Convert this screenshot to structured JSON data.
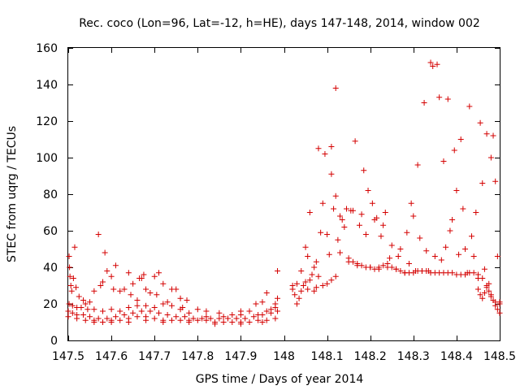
{
  "chart_data": {
    "type": "scatter",
    "title": "Rec. coco (Lon=96, Lat=-12, h=HE), days 147-148, 2014, window 002",
    "xlabel": "GPS time / Days of year 2014",
    "ylabel": "STEC from uqrg / TECUs",
    "xlim": [
      147.5,
      148.5
    ],
    "ylim": [
      0,
      160
    ],
    "xticks": [
      147.5,
      147.6,
      147.7,
      147.8,
      147.9,
      148.0,
      148.1,
      148.2,
      148.3,
      148.4,
      148.5
    ],
    "xtick_labels": [
      "147.5",
      "147.6",
      "147.7",
      "147.8",
      "147.9",
      "148",
      "148.1",
      "148.2",
      "148.3",
      "148.4",
      "148.5"
    ],
    "yticks": [
      0,
      20,
      40,
      60,
      80,
      100,
      120,
      140,
      160
    ],
    "ytick_labels": [
      "0",
      "20",
      "40",
      "60",
      "80",
      "100",
      "120",
      "140",
      "160"
    ],
    "grid": false,
    "legend": "none",
    "marker": "plus",
    "color": "#d40000",
    "series": [
      {
        "name": "STEC",
        "points": [
          [
            147.502,
            46
          ],
          [
            147.503,
            40
          ],
          [
            147.504,
            35
          ],
          [
            147.506,
            30
          ],
          [
            147.508,
            27
          ],
          [
            147.512,
            34
          ],
          [
            147.515,
            51
          ],
          [
            147.518,
            29
          ],
          [
            147.525,
            24
          ],
          [
            147.535,
            22
          ],
          [
            147.54,
            20
          ],
          [
            147.55,
            21
          ],
          [
            147.56,
            27
          ],
          [
            147.57,
            58
          ],
          [
            147.575,
            30
          ],
          [
            147.58,
            32
          ],
          [
            147.585,
            48
          ],
          [
            147.59,
            38
          ],
          [
            147.6,
            35
          ],
          [
            147.605,
            28
          ],
          [
            147.61,
            41
          ],
          [
            147.62,
            27
          ],
          [
            147.63,
            28
          ],
          [
            147.64,
            37
          ],
          [
            147.645,
            25
          ],
          [
            147.65,
            31
          ],
          [
            147.66,
            22
          ],
          [
            147.665,
            34
          ],
          [
            147.67,
            34
          ],
          [
            147.675,
            36
          ],
          [
            147.68,
            28
          ],
          [
            147.69,
            26
          ],
          [
            147.7,
            35
          ],
          [
            147.705,
            25
          ],
          [
            147.71,
            37
          ],
          [
            147.72,
            31
          ],
          [
            147.73,
            21
          ],
          [
            147.74,
            28
          ],
          [
            147.75,
            28
          ],
          [
            147.76,
            23
          ],
          [
            147.765,
            18
          ],
          [
            147.775,
            22
          ],
          [
            147.8,
            17
          ],
          [
            147.82,
            16
          ],
          [
            147.85,
            15
          ],
          [
            147.88,
            14
          ],
          [
            147.9,
            16
          ],
          [
            147.92,
            16
          ],
          [
            147.935,
            20
          ],
          [
            147.95,
            21
          ],
          [
            147.96,
            26
          ],
          [
            147.97,
            17
          ],
          [
            147.98,
            20
          ],
          [
            147.985,
            23
          ],
          [
            147.985,
            38
          ],
          [
            147.502,
            20
          ],
          [
            147.51,
            19
          ],
          [
            147.52,
            18
          ],
          [
            147.53,
            18
          ],
          [
            147.545,
            17
          ],
          [
            147.56,
            17
          ],
          [
            147.58,
            16
          ],
          [
            147.6,
            17
          ],
          [
            147.62,
            16
          ],
          [
            147.64,
            18
          ],
          [
            147.66,
            19
          ],
          [
            147.68,
            19
          ],
          [
            147.7,
            18
          ],
          [
            147.72,
            20
          ],
          [
            147.74,
            19
          ],
          [
            147.76,
            17
          ],
          [
            147.78,
            15
          ],
          [
            147.82,
            13
          ],
          [
            147.86,
            13
          ],
          [
            147.9,
            14
          ],
          [
            147.94,
            14
          ],
          [
            147.96,
            16
          ],
          [
            147.98,
            18
          ],
          [
            147.5,
            16
          ],
          [
            147.51,
            15
          ],
          [
            147.52,
            14
          ],
          [
            147.535,
            14
          ],
          [
            147.55,
            13
          ],
          [
            147.57,
            12
          ],
          [
            147.59,
            12
          ],
          [
            147.61,
            13
          ],
          [
            147.63,
            14
          ],
          [
            147.65,
            15
          ],
          [
            147.67,
            16
          ],
          [
            147.69,
            16
          ],
          [
            147.71,
            15
          ],
          [
            147.73,
            14
          ],
          [
            147.75,
            13
          ],
          [
            147.77,
            13
          ],
          [
            147.79,
            12
          ],
          [
            147.81,
            12
          ],
          [
            147.83,
            12
          ],
          [
            147.85,
            12
          ],
          [
            147.87,
            12
          ],
          [
            147.89,
            12
          ],
          [
            147.91,
            12
          ],
          [
            147.93,
            13
          ],
          [
            147.95,
            14
          ],
          [
            147.97,
            15
          ],
          [
            147.985,
            16
          ],
          [
            147.5,
            13
          ],
          [
            147.52,
            12
          ],
          [
            147.54,
            11
          ],
          [
            147.56,
            11
          ],
          [
            147.58,
            10
          ],
          [
            147.6,
            11
          ],
          [
            147.62,
            11
          ],
          [
            147.64,
            12
          ],
          [
            147.66,
            13
          ],
          [
            147.68,
            13
          ],
          [
            147.7,
            12
          ],
          [
            147.72,
            11
          ],
          [
            147.74,
            11
          ],
          [
            147.76,
            11
          ],
          [
            147.78,
            11
          ],
          [
            147.8,
            11
          ],
          [
            147.82,
            11
          ],
          [
            147.84,
            10
          ],
          [
            147.86,
            10
          ],
          [
            147.88,
            10
          ],
          [
            147.9,
            10
          ],
          [
            147.92,
            10
          ],
          [
            147.94,
            11
          ],
          [
            147.96,
            11
          ],
          [
            147.98,
            12
          ],
          [
            147.56,
            10
          ],
          [
            147.6,
            10
          ],
          [
            147.64,
            10
          ],
          [
            147.68,
            11
          ],
          [
            147.72,
            10
          ],
          [
            147.78,
            10
          ],
          [
            147.84,
            9
          ],
          [
            147.9,
            9
          ],
          [
            147.95,
            10
          ],
          [
            148.02,
            28
          ],
          [
            148.025,
            25
          ],
          [
            148.03,
            20
          ],
          [
            148.035,
            23
          ],
          [
            148.04,
            27
          ],
          [
            148.045,
            30
          ],
          [
            148.05,
            32
          ],
          [
            148.055,
            28
          ],
          [
            148.06,
            33
          ],
          [
            148.065,
            36
          ],
          [
            148.07,
            27
          ],
          [
            148.075,
            29
          ],
          [
            148.08,
            35
          ],
          [
            148.09,
            30
          ],
          [
            148.1,
            31
          ],
          [
            148.11,
            33
          ],
          [
            148.12,
            35
          ],
          [
            148.02,
            30
          ],
          [
            148.03,
            31
          ],
          [
            148.04,
            38
          ],
          [
            148.05,
            51
          ],
          [
            148.055,
            46
          ],
          [
            148.06,
            70
          ],
          [
            148.07,
            40
          ],
          [
            148.075,
            43
          ],
          [
            148.08,
            105
          ],
          [
            148.085,
            59
          ],
          [
            148.09,
            75
          ],
          [
            148.095,
            102
          ],
          [
            148.1,
            58
          ],
          [
            148.105,
            47
          ],
          [
            148.11,
            106
          ],
          [
            148.11,
            91
          ],
          [
            148.115,
            72
          ],
          [
            148.12,
            138
          ],
          [
            148.12,
            79
          ],
          [
            148.125,
            55
          ],
          [
            148.13,
            68
          ],
          [
            148.13,
            48
          ],
          [
            148.135,
            66
          ],
          [
            148.14,
            62
          ],
          [
            148.145,
            72
          ],
          [
            148.15,
            43
          ],
          [
            148.155,
            71
          ],
          [
            148.16,
            71
          ],
          [
            148.165,
            109
          ],
          [
            148.17,
            41
          ],
          [
            148.175,
            63
          ],
          [
            148.18,
            69
          ],
          [
            148.185,
            93
          ],
          [
            148.19,
            58
          ],
          [
            148.195,
            82
          ],
          [
            148.2,
            40
          ],
          [
            148.205,
            75
          ],
          [
            148.21,
            66
          ],
          [
            148.215,
            67
          ],
          [
            148.22,
            39
          ],
          [
            148.225,
            57
          ],
          [
            148.23,
            63
          ],
          [
            148.235,
            70
          ],
          [
            148.24,
            40
          ],
          [
            148.245,
            45
          ],
          [
            148.25,
            52
          ],
          [
            148.26,
            39
          ],
          [
            148.265,
            46
          ],
          [
            148.27,
            50
          ],
          [
            148.28,
            37
          ],
          [
            148.285,
            59
          ],
          [
            148.29,
            42
          ],
          [
            148.295,
            75
          ],
          [
            148.3,
            68
          ],
          [
            148.305,
            38
          ],
          [
            148.31,
            96
          ],
          [
            148.315,
            56
          ],
          [
            148.32,
            38
          ],
          [
            148.325,
            130
          ],
          [
            148.33,
            49
          ],
          [
            148.335,
            38
          ],
          [
            148.34,
            152
          ],
          [
            148.345,
            150
          ],
          [
            148.35,
            46
          ],
          [
            148.355,
            151
          ],
          [
            148.36,
            133
          ],
          [
            148.365,
            44
          ],
          [
            148.37,
            98
          ],
          [
            148.375,
            51
          ],
          [
            148.38,
            132
          ],
          [
            148.385,
            60
          ],
          [
            148.39,
            66
          ],
          [
            148.395,
            104
          ],
          [
            148.4,
            82
          ],
          [
            148.405,
            47
          ],
          [
            148.41,
            110
          ],
          [
            148.415,
            72
          ],
          [
            148.42,
            50
          ],
          [
            148.425,
            37
          ],
          [
            148.43,
            128
          ],
          [
            148.435,
            57
          ],
          [
            148.44,
            46
          ],
          [
            148.445,
            70
          ],
          [
            148.45,
            34
          ],
          [
            148.455,
            119
          ],
          [
            148.46,
            86
          ],
          [
            148.465,
            39
          ],
          [
            148.47,
            113
          ],
          [
            148.475,
            31
          ],
          [
            148.48,
            100
          ],
          [
            148.485,
            112
          ],
          [
            148.49,
            87
          ],
          [
            148.495,
            46
          ],
          [
            148.5,
            20
          ],
          [
            148.15,
            45
          ],
          [
            148.16,
            43
          ],
          [
            148.17,
            42
          ],
          [
            148.18,
            41
          ],
          [
            148.19,
            40
          ],
          [
            148.2,
            40
          ],
          [
            148.21,
            39
          ],
          [
            148.22,
            40
          ],
          [
            148.23,
            41
          ],
          [
            148.24,
            42
          ],
          [
            148.25,
            40
          ],
          [
            148.26,
            39
          ],
          [
            148.27,
            38
          ],
          [
            148.28,
            37
          ],
          [
            148.29,
            37
          ],
          [
            148.3,
            37
          ],
          [
            148.31,
            38
          ],
          [
            148.32,
            38
          ],
          [
            148.33,
            38
          ],
          [
            148.34,
            37
          ],
          [
            148.35,
            37
          ],
          [
            148.36,
            37
          ],
          [
            148.37,
            37
          ],
          [
            148.38,
            37
          ],
          [
            148.39,
            37
          ],
          [
            148.4,
            36
          ],
          [
            148.41,
            36
          ],
          [
            148.42,
            36
          ],
          [
            148.43,
            37
          ],
          [
            148.44,
            37
          ],
          [
            148.45,
            36
          ],
          [
            148.46,
            34
          ],
          [
            148.47,
            30
          ],
          [
            148.475,
            27
          ],
          [
            148.48,
            25
          ],
          [
            148.485,
            22
          ],
          [
            148.49,
            19
          ],
          [
            148.495,
            17
          ],
          [
            148.5,
            15
          ],
          [
            148.45,
            28
          ],
          [
            148.455,
            25
          ],
          [
            148.46,
            23
          ],
          [
            148.465,
            26
          ],
          [
            148.47,
            29
          ],
          [
            148.48,
            24
          ],
          [
            148.49,
            21
          ],
          [
            148.5,
            21
          ]
        ]
      }
    ]
  }
}
